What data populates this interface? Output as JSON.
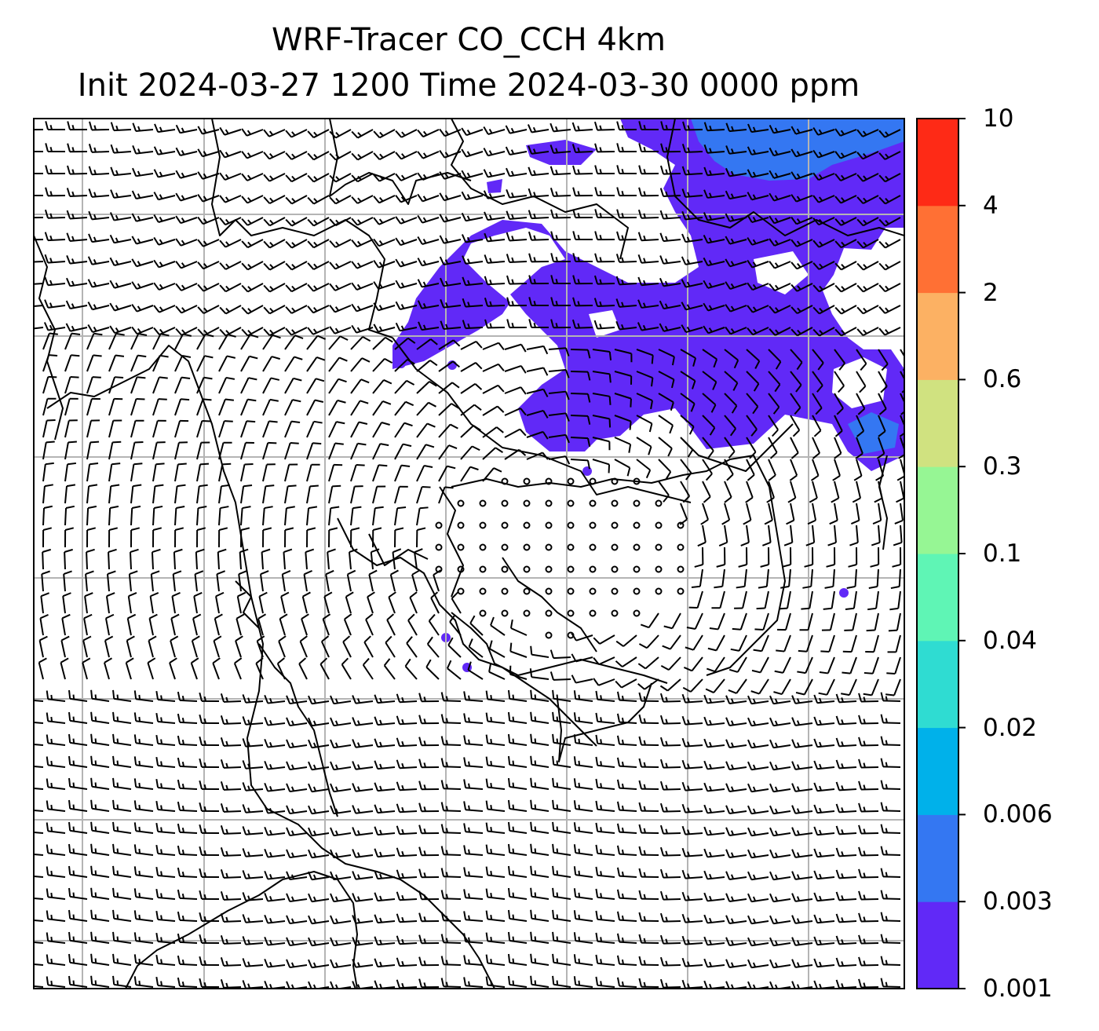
{
  "title": {
    "line1": "WRF-Tracer CO_CCH 4km",
    "line2": "Init 2024-03-27 1200 Time 2024-03-30 0000 ppm"
  },
  "colorbar": {
    "tick_labels": [
      "0.001",
      "0.003",
      "0.006",
      "0.02",
      "0.04",
      "0.1",
      "0.3",
      "0.6",
      "2",
      "4",
      "10"
    ],
    "colors": [
      "#6129f7",
      "#3477f2",
      "#00b1ea",
      "#2fdcd2",
      "#5ff5b5",
      "#96f694",
      "#d0e280",
      "#fcb163",
      "#ff7034",
      "#fe2a16"
    ]
  },
  "map": {
    "plume_color": "#6129f7",
    "plume_core_color": "#3477f2",
    "gridline_color": "#b4b4b4"
  }
}
